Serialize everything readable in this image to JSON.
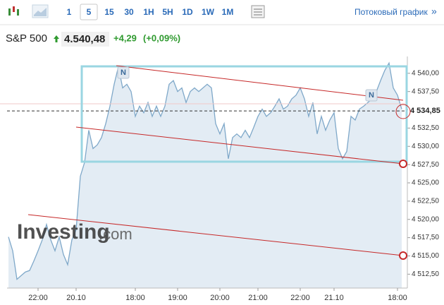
{
  "toolbar": {
    "timeframes": [
      "1",
      "5",
      "15",
      "30",
      "1H",
      "5H",
      "1D",
      "1W",
      "1M"
    ],
    "stream_link": "Потоковый график",
    "stream_arrow": "»"
  },
  "header": {
    "symbol": "S&P 500",
    "price": "4.540,48",
    "change": "+4,29",
    "change_pct": "(+0,09%)"
  },
  "chart_data": {
    "type": "area",
    "color": "#7fa8c9",
    "fill": "#e3ecf4",
    "grid": false,
    "categories": [
      null,
      null,
      null,
      null,
      null,
      null,
      null,
      "22:00",
      null,
      null,
      null,
      null,
      null,
      null,
      null,
      null,
      "20.10",
      null,
      null,
      null,
      null,
      null,
      null,
      null,
      null,
      null,
      null,
      null,
      null,
      null,
      "18:00",
      null,
      null,
      null,
      null,
      null,
      null,
      null,
      null,
      null,
      "19:00",
      null,
      null,
      null,
      null,
      null,
      null,
      null,
      null,
      null,
      "20:00",
      null,
      null,
      null,
      null,
      null,
      null,
      null,
      null,
      "21:00",
      null,
      null,
      null,
      null,
      null,
      null,
      null,
      null,
      null,
      "22:00",
      null,
      null,
      null,
      null,
      null,
      null,
      null,
      "21.10",
      null,
      null,
      null,
      null,
      null,
      null,
      null,
      null,
      null,
      null,
      null,
      null,
      null,
      null,
      "18:00",
      null
    ],
    "values": [
      4517.6,
      4515.7,
      4511.8,
      4512.3,
      4512.8,
      4513.0,
      4514.3,
      4515.7,
      4517.2,
      4519.3,
      4517.2,
      4515.7,
      4517.6,
      4515.2,
      4513.8,
      4517.2,
      4518.6,
      4525.9,
      4527.8,
      4532.2,
      4529.7,
      4530.2,
      4531.2,
      4533.1,
      4535.5,
      4538.5,
      4540.9,
      4538.0,
      4538.5,
      4537.5,
      4534.1,
      4535.5,
      4534.6,
      4536.0,
      4534.1,
      4535.5,
      4534.1,
      4535.5,
      4538.5,
      4539.0,
      4537.5,
      4538.0,
      4536.0,
      4537.5,
      4538.0,
      4537.5,
      4538.0,
      4538.5,
      4538.0,
      4533.1,
      4531.7,
      4533.1,
      4528.3,
      4531.2,
      4531.7,
      4531.2,
      4532.2,
      4531.2,
      4532.6,
      4534.1,
      4535.1,
      4534.1,
      4534.6,
      4535.5,
      4536.5,
      4535.1,
      4535.5,
      4536.5,
      4537.0,
      4538.0,
      4536.5,
      4534.1,
      4536.0,
      4531.7,
      4534.1,
      4532.2,
      4533.6,
      4534.6,
      4529.7,
      4528.3,
      4529.3,
      4534.1,
      4533.6,
      4535.1,
      4535.5,
      4536.0,
      4536.5,
      4537.5,
      4539.0,
      4540.4,
      4541.4,
      4538.0,
      4537.0,
      4535.1
    ],
    "ylim": [
      4510.6,
      4542.3
    ],
    "yticks": [
      {
        "value": 4512.5,
        "label": "4 512,50"
      },
      {
        "value": 4515,
        "label": "4 515,00"
      },
      {
        "value": 4517.5,
        "label": "4 517,50"
      },
      {
        "value": 4520,
        "label": "4 520,00"
      },
      {
        "value": 4522.5,
        "label": "4 522,50"
      },
      {
        "value": 4525,
        "label": "4 525,00"
      },
      {
        "value": 4527.5,
        "label": "4 527,50"
      },
      {
        "value": 4530,
        "label": "4 530,00"
      },
      {
        "value": 4532.5,
        "label": "4 532,50"
      },
      {
        "value": 4535,
        "label": "4 535,00"
      },
      {
        "value": 4537.5,
        "label": "4 537,50"
      },
      {
        "value": 4540,
        "label": "4 540,00"
      }
    ],
    "last_value": {
      "value": 4534.85,
      "label": "4 534,85"
    },
    "annotations": [
      "N",
      "N"
    ],
    "watermark": [
      "Investing",
      ".com"
    ]
  }
}
